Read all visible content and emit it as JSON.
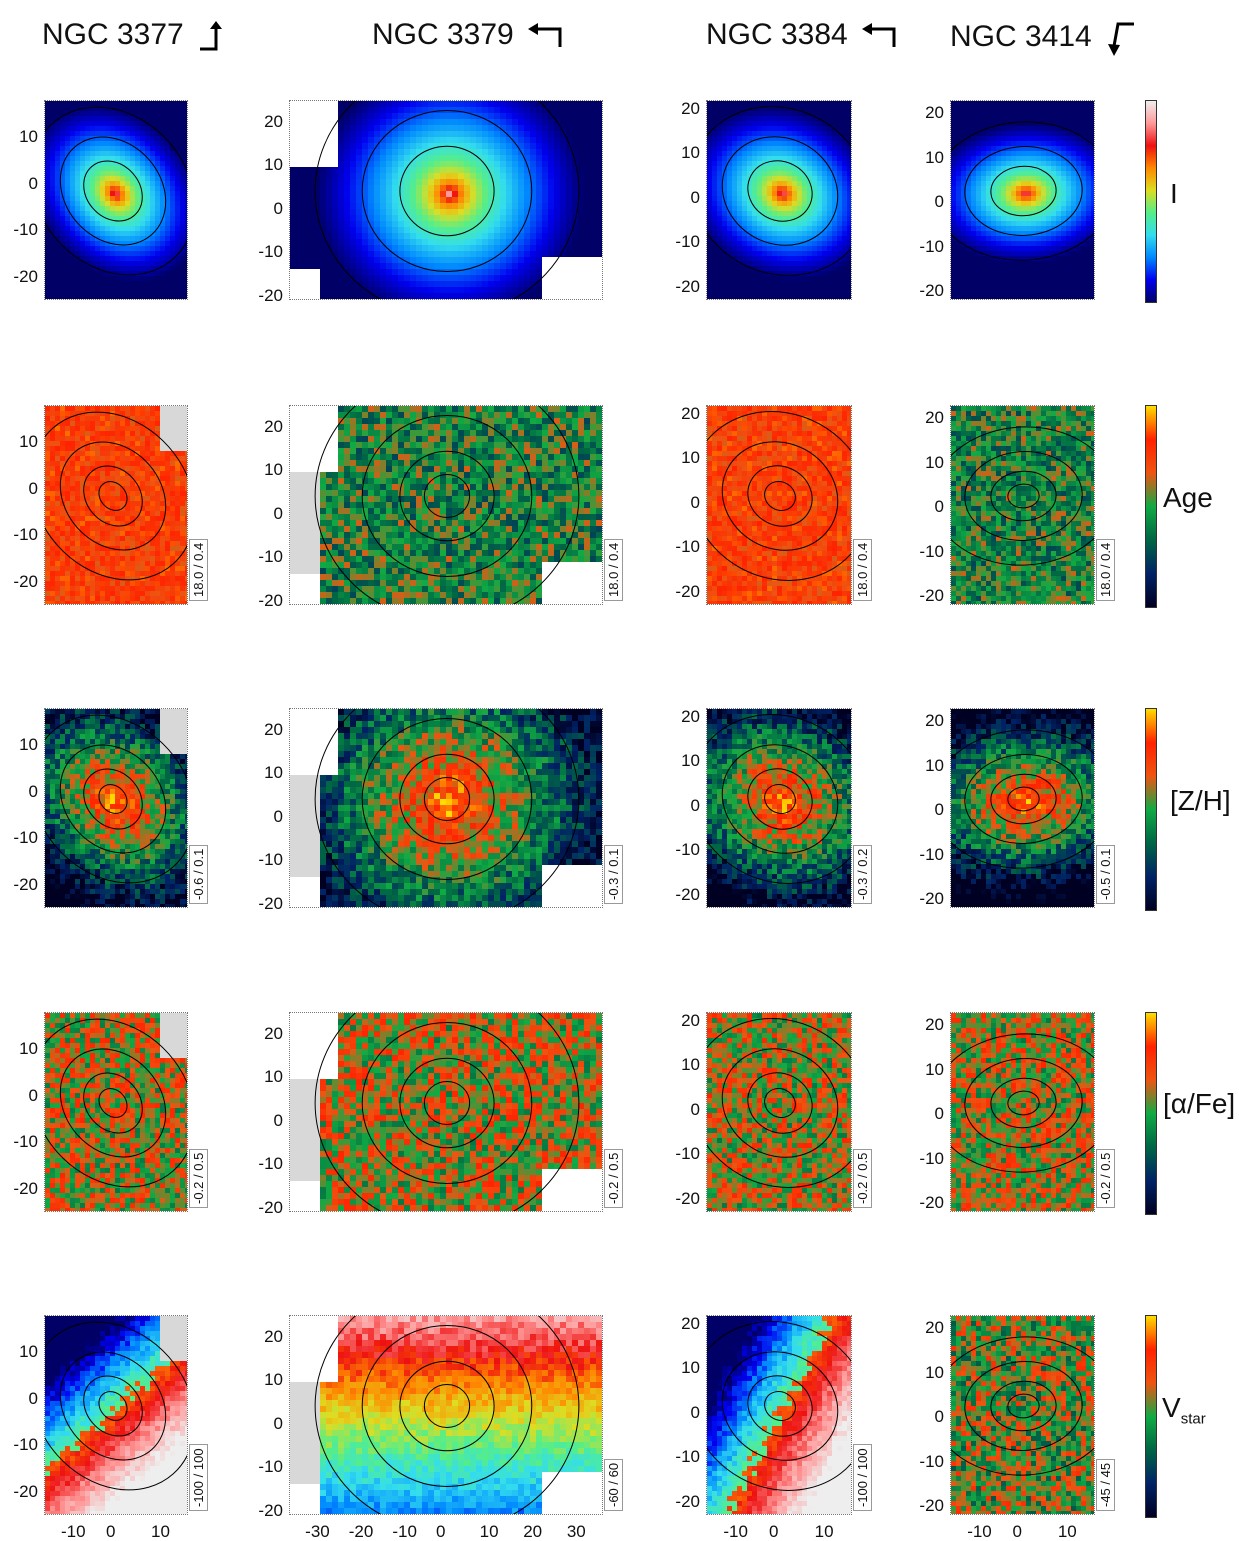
{
  "columns": [
    {
      "name": "NGC 3377",
      "range_labels": [
        "",
        "18.0 / 0.4",
        "-0.6 / 0.1",
        "-0.2 / 0.5",
        "-100 / 100"
      ]
    },
    {
      "name": "NGC 3379",
      "range_labels": [
        "",
        "18.0 / 0.4",
        "-0.3 / 0.1",
        "-0.2 / 0.5",
        "-60 / 60"
      ]
    },
    {
      "name": "NGC 3384",
      "range_labels": [
        "",
        "18.0 / 0.4",
        "-0.3 / 0.2",
        "-0.2 / 0.5",
        "-100 / 100"
      ]
    },
    {
      "name": "NGC 3414",
      "range_labels": [
        "",
        "18.0 / 0.4",
        "-0.5 / 0.1",
        "-0.2 / 0.5",
        "-45 / 45"
      ]
    }
  ],
  "rows": [
    {
      "quantity": "I",
      "sub": ""
    },
    {
      "quantity": "Age",
      "sub": ""
    },
    {
      "quantity": "[Z/H]",
      "sub": ""
    },
    {
      "quantity": "[α/Fe]",
      "sub": ""
    },
    {
      "quantity": "V",
      "sub": "star"
    }
  ],
  "y_ticks": {
    "ngc3377": [
      "10",
      "0",
      "-10",
      "-20"
    ],
    "ngc3379": [
      "20",
      "10",
      "0",
      "-10",
      "-20"
    ],
    "ngc3384": [
      "20",
      "10",
      "0",
      "-10",
      "-20"
    ],
    "ngc3414": [
      "20",
      "10",
      "0",
      "-10",
      "-20"
    ]
  },
  "x_ticks": {
    "ngc3377": [
      "-10",
      "0",
      "10"
    ],
    "ngc3379": [
      "-30",
      "-20",
      "-10",
      "0",
      "10",
      "20",
      "30"
    ],
    "ngc3384": [
      "-10",
      "0",
      "10"
    ],
    "ngc3414": [
      "-10",
      "0",
      "10"
    ]
  },
  "colormaps": {
    "intensity": [
      "#000066",
      "#0000ee",
      "#0088ff",
      "#33ddee",
      "#55ee88",
      "#dddd22",
      "#ff8800",
      "#ee1111",
      "#ff9999",
      "#eeeeee"
    ],
    "diverging": [
      "#000022",
      "#002266",
      "#006644",
      "#11aa44",
      "#ee5511",
      "#ff2200",
      "#ffdd00"
    ]
  }
}
